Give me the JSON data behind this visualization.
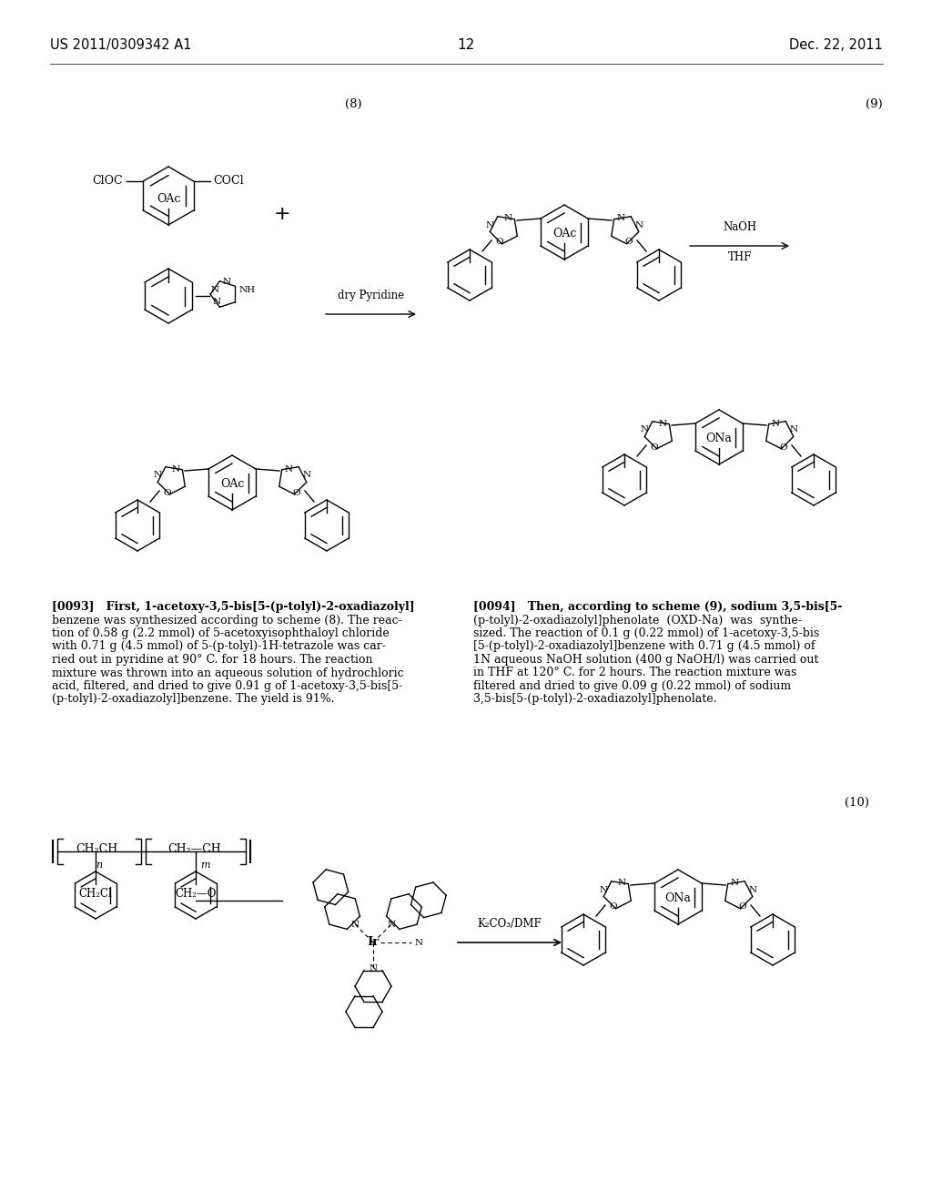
{
  "page_number": "12",
  "patent_number": "US 2011/0309342 A1",
  "patent_date": "Dec. 22, 2011",
  "background_color": "#ffffff",
  "text_color": "#000000",
  "scheme_label_8": "(8)",
  "scheme_label_9": "(9)",
  "scheme_label_10": "(10)",
  "p93_bold": "[0093]",
  "p93_rest": "   First, 1-acetoxy-3,5-bis[5-(p-tolyl)-2-oxadiazolyl]\nbenzene was synthesized according to scheme (8). The reac-\ntion of 0.58 g (2.2 mmol) of 5-acetoxyisophthaloyl chloride\nwith 0.71 g (4.5 mmol) of 5-(p-tolyl)-1H-tetrazole was car-\nried out in pyridine at 90° C. for 18 hours. The reaction\nmixture was thrown into an aqueous solution of hydrochloric\nacid, filtered, and dried to give 0.91 g of 1-acetoxy-3,5-bis[5-\n(p-tolyl)-2-oxadiazolyl]benzene. The yield is 91%.",
  "p94_bold": "[0094]",
  "p94_rest": "   Then, according to scheme (9), sodium 3,5-bis[5-\n(p-tolyl)-2-oxadiazolyl]phenolate  (OXD-Na)  was  synthe-\nsized. The reaction of 0.1 g (0.22 mmol) of 1-acetoxy-3,5-bis\n[5-(p-tolyl)-2-oxadiazolyl]benzene with 0.71 g (4.5 mmol) of\n1N aqueous NaOH solution (400 g NaOH/l) was carried out\nin THF at 120° C. for 2 hours. The reaction mixture was\nfiltered and dried to give 0.09 g (0.22 mmol) of sodium\n3,5-bis[5-(p-tolyl)-2-oxadiazolyl]phenolate.",
  "arrow_dry_pyridine": "dry Pyridine",
  "arrow_naoh": "NaOH",
  "arrow_thf": "THF",
  "arrow_k2co3": "K₂CO₃/DMF",
  "fs": 9.5
}
